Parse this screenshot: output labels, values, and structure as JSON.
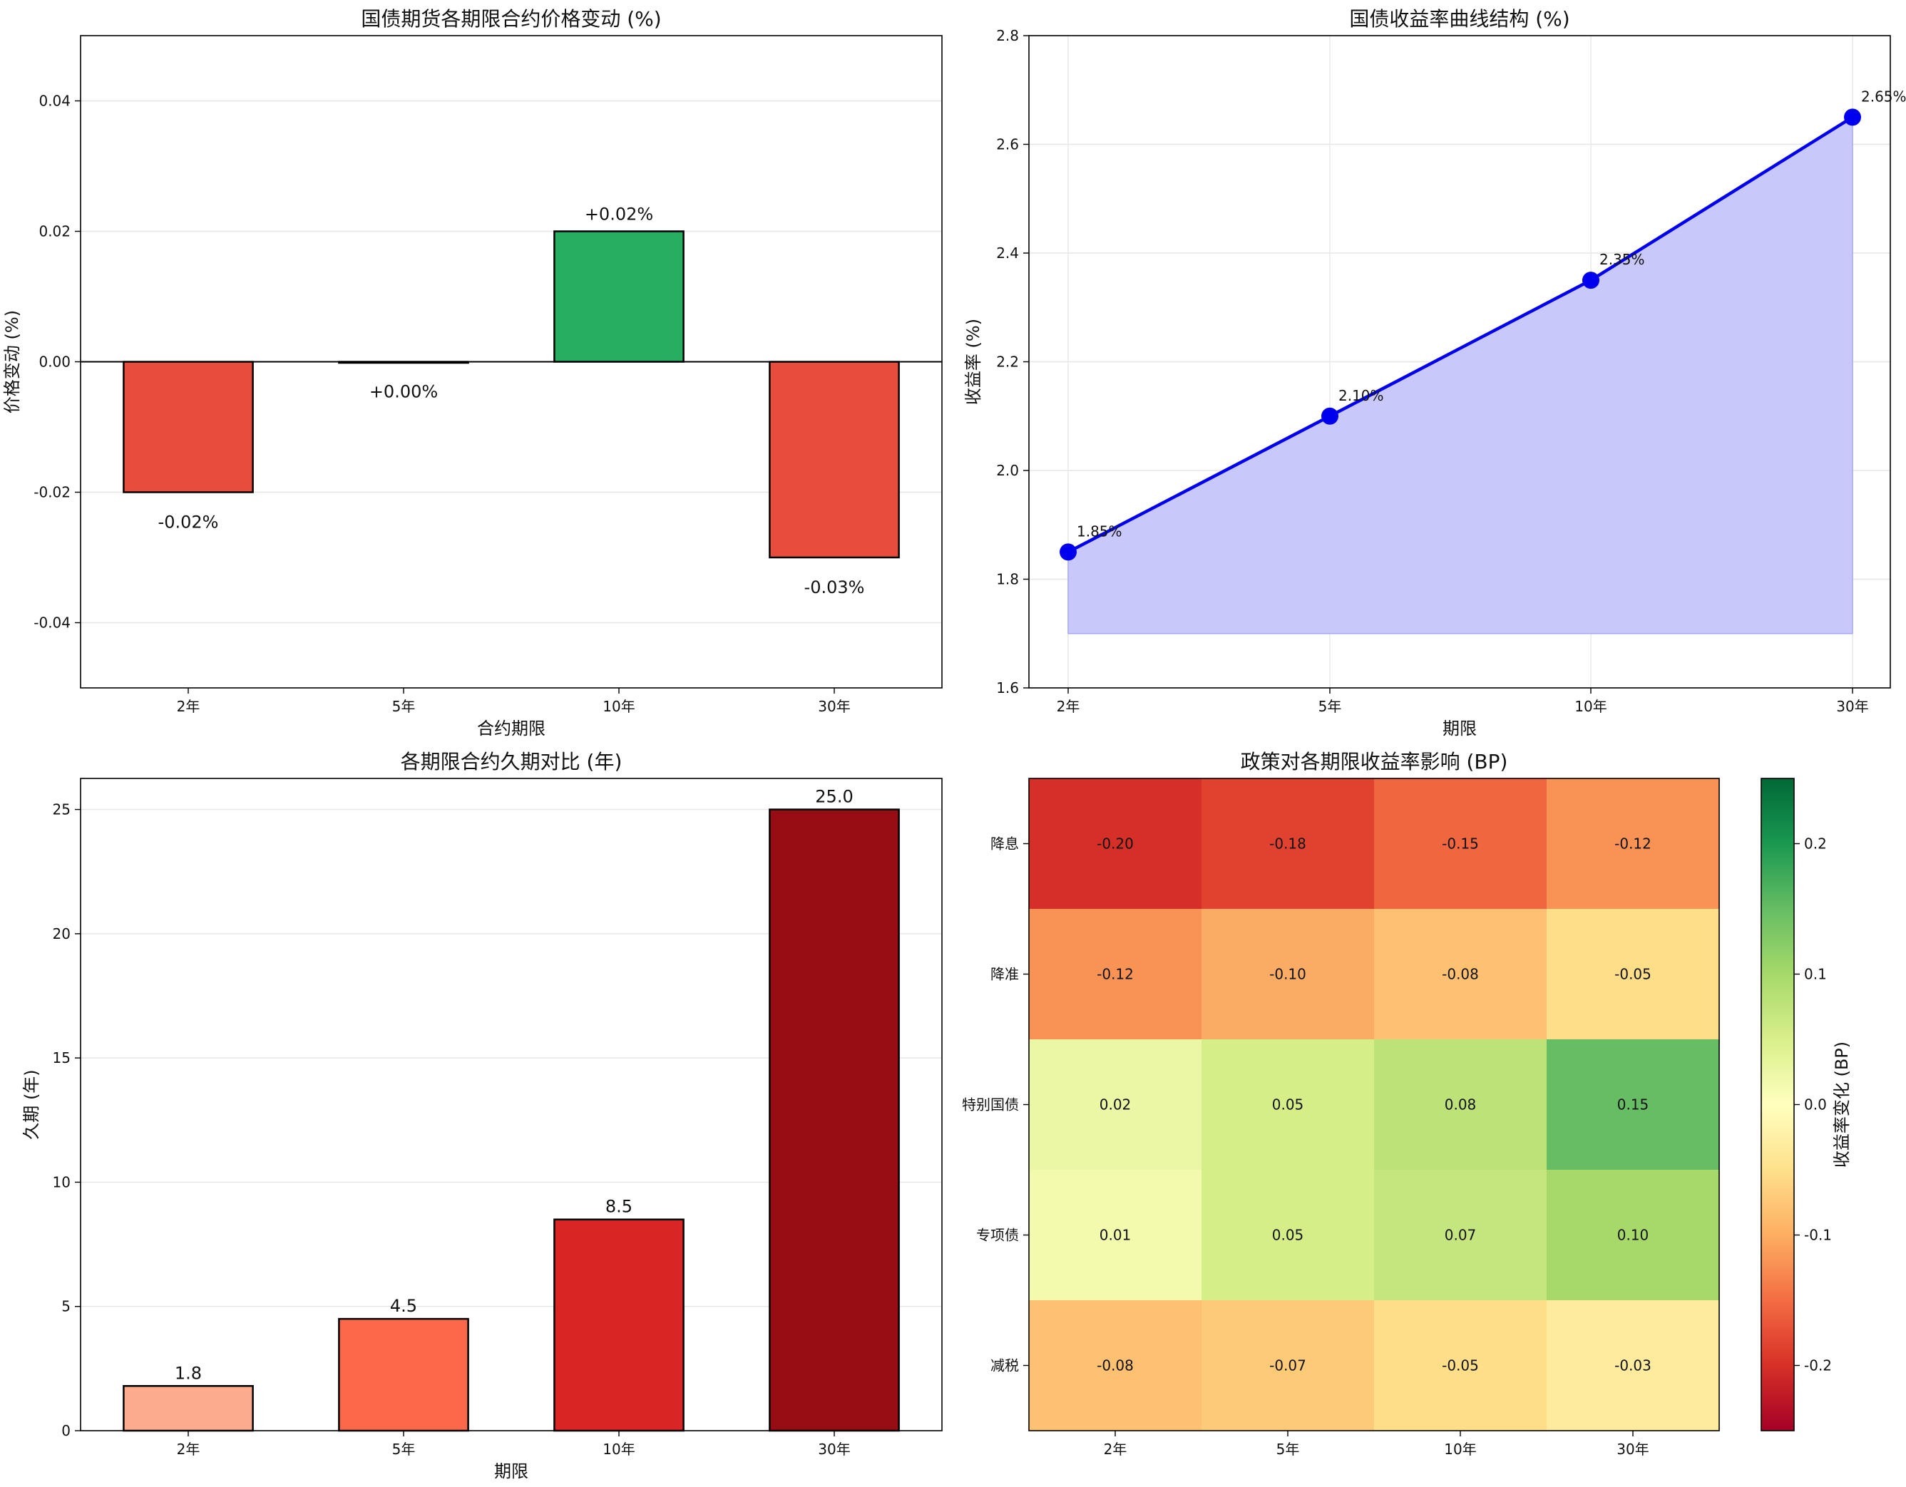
{
  "chart_data": [
    {
      "type": "bar",
      "title": "国债期货各期限合约价格变动 (%)",
      "xlabel": "合约期限",
      "ylabel": "价格变动 (%)",
      "categories": [
        "2年",
        "5年",
        "10年",
        "30年"
      ],
      "values": [
        -0.02,
        0.0,
        0.02,
        -0.03
      ],
      "value_labels": [
        "-0.02%",
        "+0.00%",
        "+0.02%",
        "-0.03%"
      ],
      "colors": [
        "#e74c3c",
        "#e74c3c",
        "#27ae60",
        "#e74c3c"
      ],
      "ylim": [
        -0.05,
        0.05
      ],
      "yticks": [
        -0.04,
        -0.02,
        0.0,
        0.02,
        0.04
      ],
      "ytick_labels": [
        "-0.04",
        "-0.02",
        "0.00",
        "0.02",
        "0.04"
      ],
      "grid": "y"
    },
    {
      "type": "line",
      "title": "国债收益率曲线结构 (%)",
      "xlabel": "期限",
      "ylabel": "收益率 (%)",
      "categories": [
        "2年",
        "5年",
        "10年",
        "30年"
      ],
      "values": [
        1.85,
        2.1,
        2.35,
        2.65
      ],
      "value_labels": [
        "1.85%",
        "2.10%",
        "2.35%",
        "2.65%"
      ],
      "fill_baseline": 1.7,
      "line_color": "#0000ee",
      "fill_color": "#c8c8fa",
      "ylim": [
        1.6,
        2.8
      ],
      "yticks": [
        1.6,
        1.8,
        2.0,
        2.2,
        2.4,
        2.6,
        2.8
      ],
      "ytick_labels": [
        "1.6",
        "1.8",
        "2.0",
        "2.2",
        "2.4",
        "2.6",
        "2.8"
      ],
      "grid": "both"
    },
    {
      "type": "bar",
      "title": "各期限合约久期对比 (年)",
      "xlabel": "期限",
      "ylabel": "久期 (年)",
      "categories": [
        "2年",
        "5年",
        "10年",
        "30年"
      ],
      "values": [
        1.8,
        4.5,
        8.5,
        25.0
      ],
      "value_labels": [
        "1.8",
        "4.5",
        "8.5",
        "25.0"
      ],
      "colors": [
        "#fcab8f",
        "#fb694a",
        "#d92523",
        "#980c13"
      ],
      "ylim": [
        0,
        26.25
      ],
      "yticks": [
        0,
        5,
        10,
        15,
        20,
        25
      ],
      "ytick_labels": [
        "0",
        "5",
        "10",
        "15",
        "20",
        "25"
      ],
      "grid": "y"
    },
    {
      "type": "heatmap",
      "title": "政策对各期限收益率影响 (BP)",
      "columns": [
        "2年",
        "5年",
        "10年",
        "30年"
      ],
      "rows": [
        "降息",
        "降准",
        "特别国债",
        "专项债",
        "减税"
      ],
      "values": [
        [
          -0.2,
          -0.18,
          -0.15,
          -0.12
        ],
        [
          -0.12,
          -0.1,
          -0.08,
          -0.05
        ],
        [
          0.02,
          0.05,
          0.08,
          0.15
        ],
        [
          0.01,
          0.05,
          0.07,
          0.1
        ],
        [
          -0.08,
          -0.07,
          -0.05,
          -0.03
        ]
      ],
      "cell_labels": [
        [
          "-0.20",
          "-0.18",
          "-0.15",
          "-0.12"
        ],
        [
          "-0.12",
          "-0.10",
          "-0.08",
          "-0.05"
        ],
        [
          "0.02",
          "0.05",
          "0.08",
          "0.15"
        ],
        [
          "0.01",
          "0.05",
          "0.07",
          "0.10"
        ],
        [
          "-0.08",
          "-0.07",
          "-0.05",
          "-0.03"
        ]
      ],
      "cell_colors": [
        [
          "#d62f27",
          "#e0422f",
          "#f0663f",
          "#f99355"
        ],
        [
          "#f99355",
          "#fbac64",
          "#fdc171",
          "#fede89"
        ],
        [
          "#ecf7a6",
          "#d6ee88",
          "#bce278",
          "#66bd63"
        ],
        [
          "#f3faad",
          "#d6ee88",
          "#c5e67f",
          "#a7d96a"
        ],
        [
          "#fdc171",
          "#fdca78",
          "#fede89",
          "#feeb9d"
        ]
      ],
      "colorbar": {
        "label": "收益率变化 (BP)",
        "vmin": -0.25,
        "vmax": 0.25,
        "ticks": [
          -0.2,
          -0.1,
          0.0,
          0.1,
          0.2
        ],
        "tick_labels": [
          "-0.2",
          "-0.1",
          "0.0",
          "0.1",
          "0.2"
        ],
        "colors": [
          "#a50026",
          "#d73027",
          "#f46d43",
          "#fdae61",
          "#fee08b",
          "#ffffbf",
          "#d9ef8b",
          "#a6d96a",
          "#66bd63",
          "#1a9850",
          "#006837"
        ]
      }
    }
  ]
}
